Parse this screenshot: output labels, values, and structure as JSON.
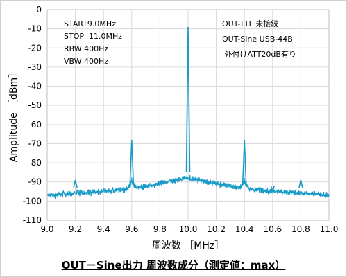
{
  "caption": "OUT－Sine出力 周波数成分（測定値：max）",
  "chart_data": {
    "type": "line",
    "xlabel": "周波数 ［MHz］",
    "ylabel": "Amplitude ［dBm］",
    "xlim": [
      9.0,
      11.0
    ],
    "ylim": [
      -110,
      0
    ],
    "x_ticks": [
      "9.0",
      "9.2",
      "9.4",
      "9.6",
      "9.8",
      "10.0",
      "10.2",
      "10.4",
      "10.6",
      "10.8",
      "11.0"
    ],
    "y_ticks": [
      "0",
      "-10",
      "-20",
      "-30",
      "-40",
      "-50",
      "-60",
      "-70",
      "-80",
      "-90",
      "-100",
      "-110"
    ],
    "grid": true,
    "line_color": "#1a9bc8",
    "noise_floor": {
      "x": [
        9.0,
        9.2,
        9.4,
        9.6,
        9.8,
        10.0,
        10.2,
        10.4,
        10.6,
        10.8,
        11.0
      ],
      "y": [
        -98,
        -97,
        -96,
        -95,
        -92,
        -89,
        -92,
        -95,
        -96,
        -97,
        -98
      ]
    },
    "peaks": [
      {
        "x": 9.2,
        "y": -89
      },
      {
        "x": 9.6,
        "y": -68
      },
      {
        "x": 10.0,
        "y": -9
      },
      {
        "x": 10.4,
        "y": -68
      },
      {
        "x": 10.6,
        "y": -95
      },
      {
        "x": 10.8,
        "y": -89
      }
    ],
    "annotations_left": [
      "START9.0MHz",
      "STOP  11.0MHz",
      "RBW 400Hz",
      "VBW 400Hz"
    ],
    "annotations_right": [
      "OUT-TTL 未接続",
      "OUT-Sine USB-44B",
      " 外付けATT20dB有り"
    ]
  }
}
